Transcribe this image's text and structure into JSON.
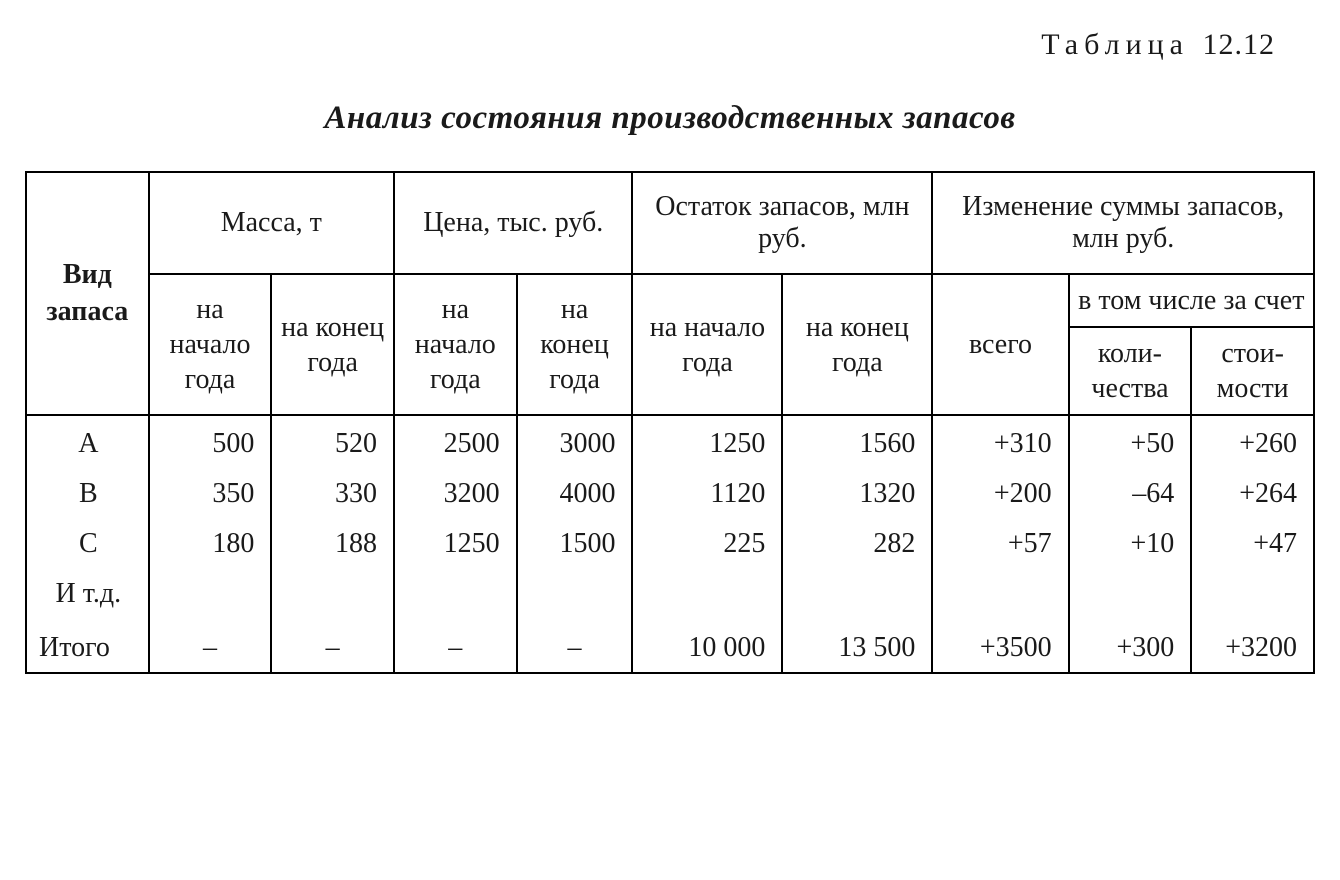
{
  "caption": {
    "label": "Таблица",
    "number": "12.12"
  },
  "title": "Анализ состояния производственных запасов",
  "table": {
    "rowhdr": "Вид запаса",
    "groups": {
      "mass": "Масса, т",
      "price": "Цена, тыс. руб.",
      "stock": "Остаток запасов, млн руб.",
      "change": "Изменение суммы запасов, млн руб."
    },
    "sub": {
      "start": "на начало года",
      "end": "на конец года",
      "total": "всего",
      "incl": "в том числе за счет",
      "qty": "коли­чества",
      "cost": "стои­мости"
    },
    "rows": [
      {
        "label": "А",
        "mass_s": "500",
        "mass_e": "520",
        "price_s": "2500",
        "price_e": "3000",
        "stock_s": "1250",
        "stock_e": "1560",
        "ch_tot": "+310",
        "ch_qty": "+50",
        "ch_cost": "+260"
      },
      {
        "label": "В",
        "mass_s": "350",
        "mass_e": "330",
        "price_s": "3200",
        "price_e": "4000",
        "stock_s": "1120",
        "stock_e": "1320",
        "ch_tot": "+200",
        "ch_qty": "–64",
        "ch_cost": "+264"
      },
      {
        "label": "С",
        "mass_s": "180",
        "mass_e": "188",
        "price_s": "1250",
        "price_e": "1500",
        "stock_s": "225",
        "stock_e": "282",
        "ch_tot": "+57",
        "ch_qty": "+10",
        "ch_cost": "+47"
      },
      {
        "label": "И т.д.",
        "mass_s": "",
        "mass_e": "",
        "price_s": "",
        "price_e": "",
        "stock_s": "",
        "stock_e": "",
        "ch_tot": "",
        "ch_qty": "",
        "ch_cost": ""
      }
    ],
    "total": {
      "label": "Итого",
      "mass_s": "–",
      "mass_e": "–",
      "price_s": "–",
      "price_e": "–",
      "stock_s": "10 000",
      "stock_e": "13 500",
      "ch_tot": "+3500",
      "ch_qty": "+300",
      "ch_cost": "+3200"
    }
  },
  "style": {
    "border_color": "#000000",
    "background_color": "#ffffff",
    "text_color": "#1a1a1a",
    "font_family": "Times New Roman, serif",
    "body_fontsize": 28,
    "title_fontsize": 33,
    "caption_fontsize": 30
  }
}
